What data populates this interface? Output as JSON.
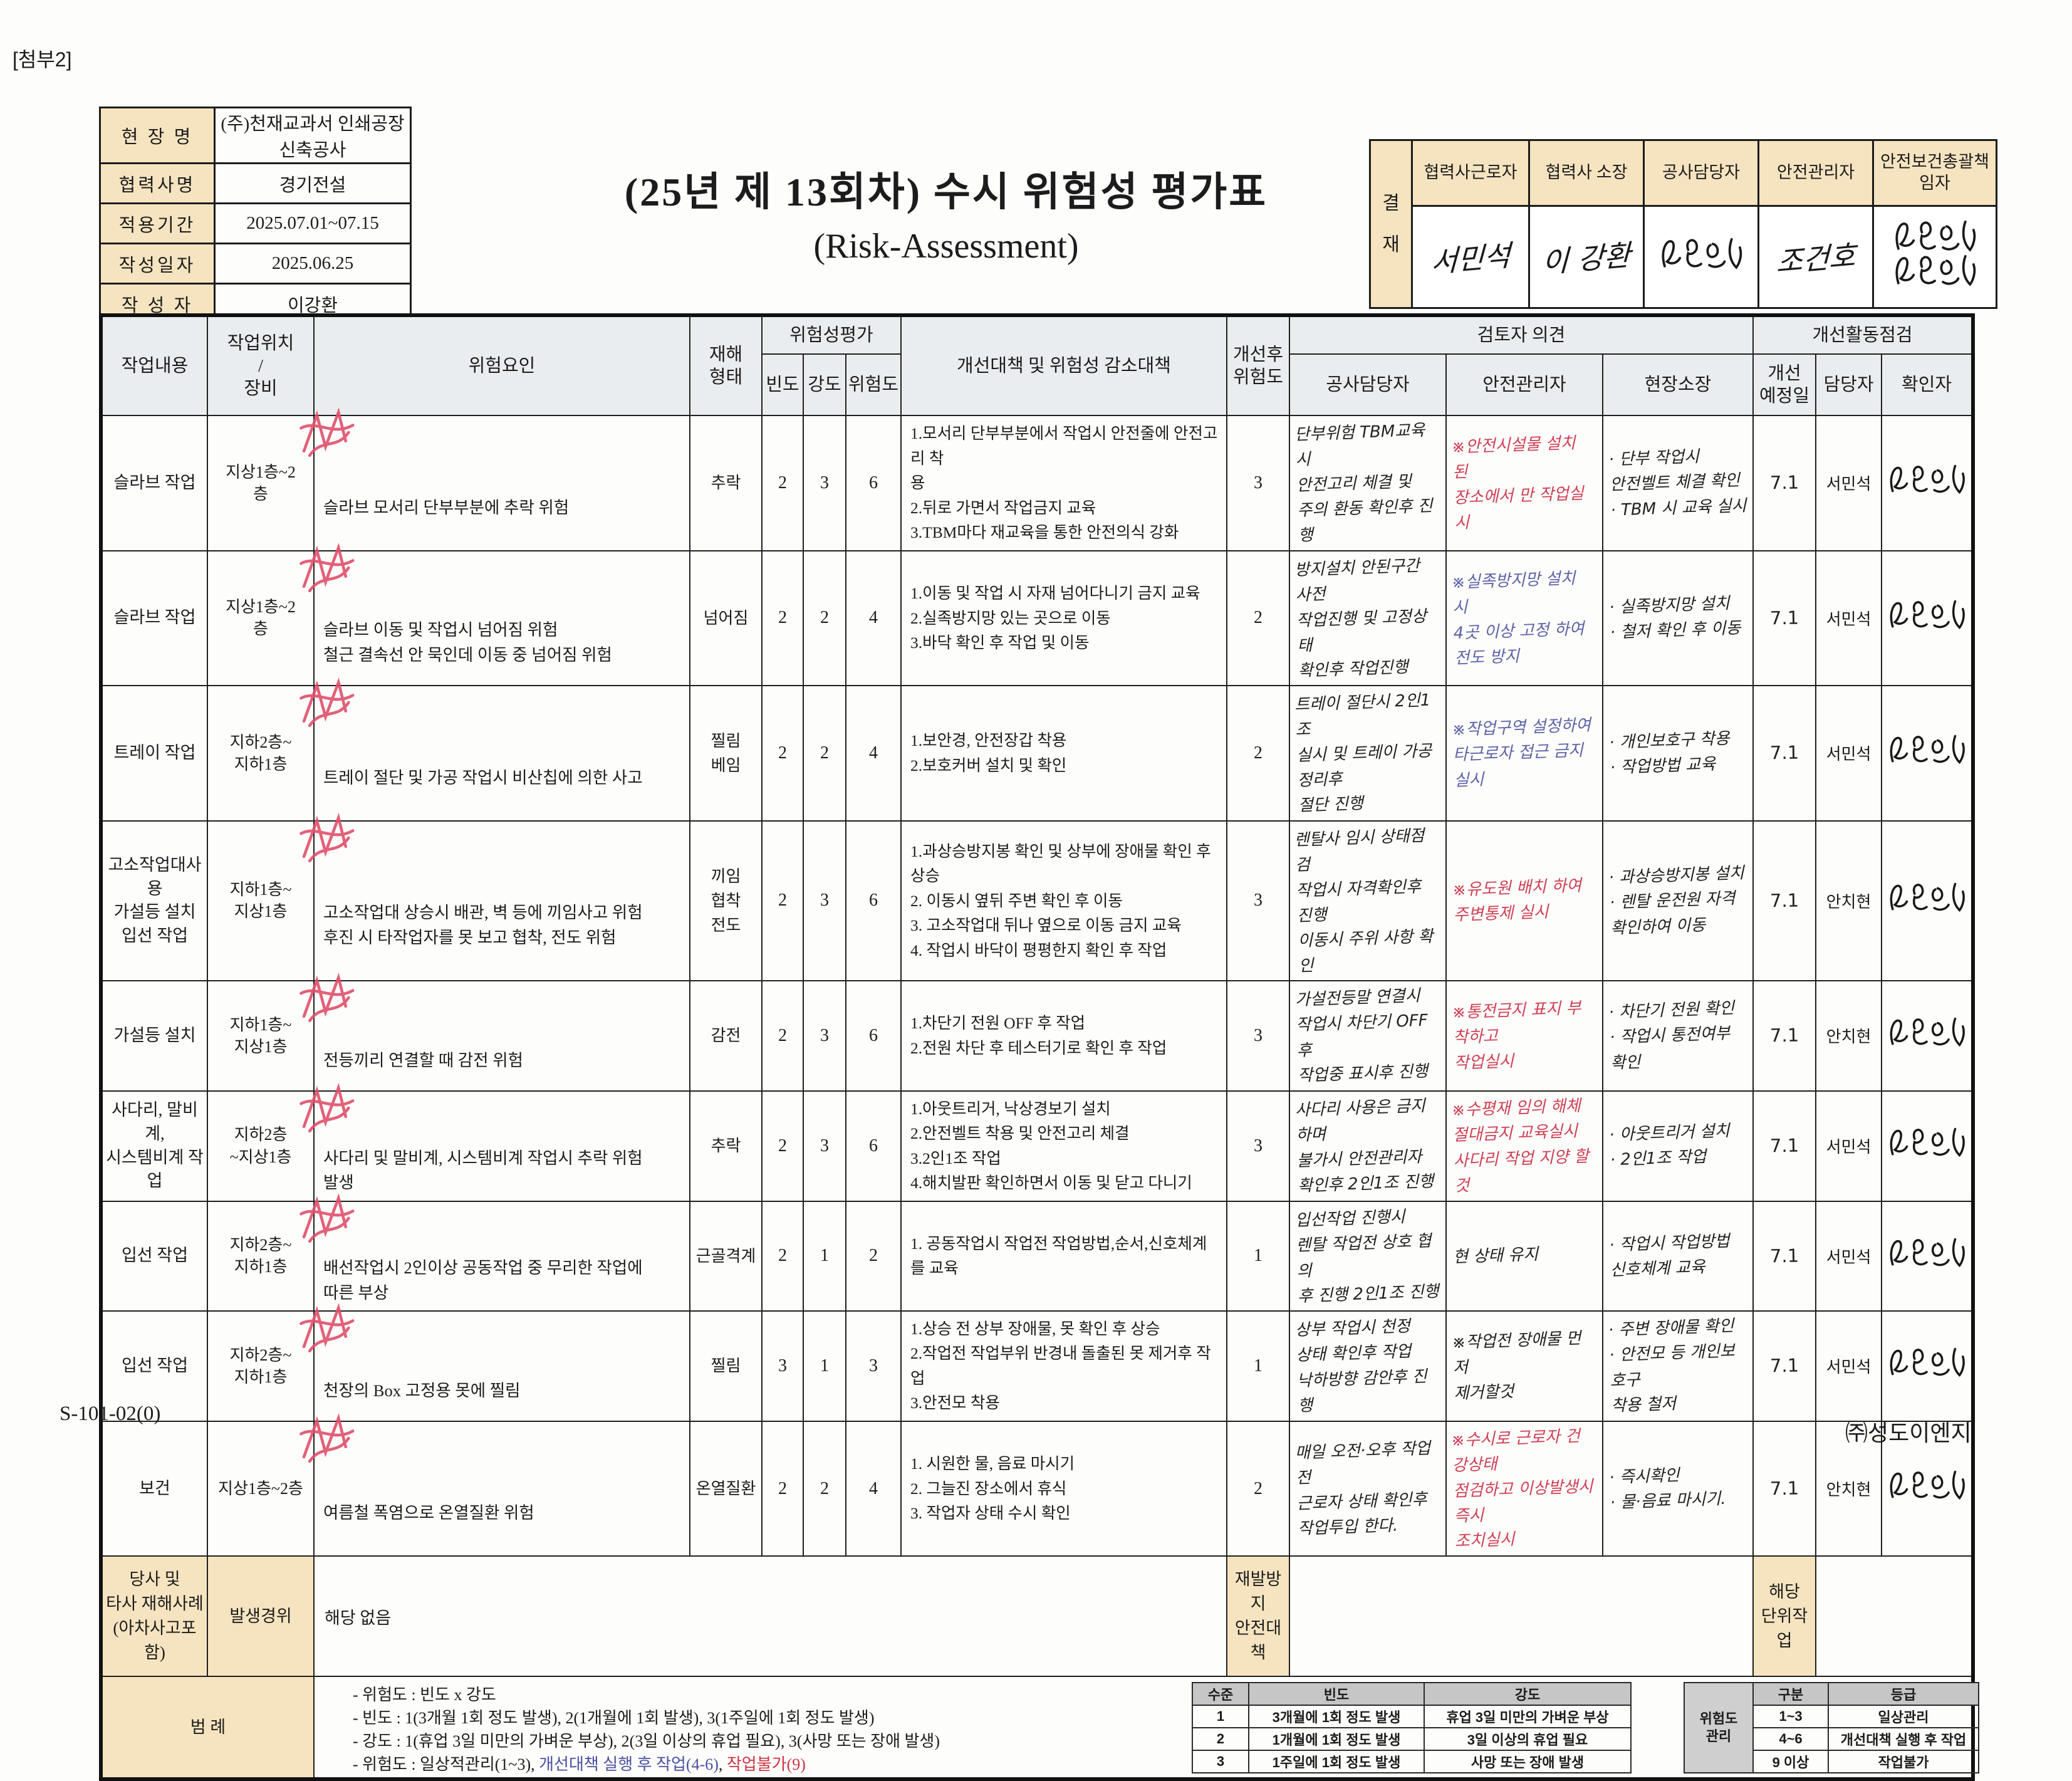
{
  "page": {
    "attachment": "[첨부2]",
    "form_code": "S-101-02(0)",
    "company": "㈜성도이엔지"
  },
  "info": {
    "rows": [
      {
        "label": "현 장 명",
        "value": "(주)천재교과서 인쇄공장\n신축공사"
      },
      {
        "label": "협력사명",
        "value": "경기전설"
      },
      {
        "label": "적용기간",
        "value": "2025.07.01~07.15"
      },
      {
        "label": "작성일자",
        "value": "2025.06.25"
      },
      {
        "label": "작 성 자",
        "value": "이강환"
      }
    ]
  },
  "title": {
    "line1": "(25년 제 13회차) 수시 위험성 평가표",
    "line2": "(Risk-Assessment)"
  },
  "approval": {
    "label": "결\n재",
    "cols": [
      {
        "header": "협력사근로자",
        "sign": "서민석",
        "sign_type": "text"
      },
      {
        "header": "협력사 소장",
        "sign": "이 강환",
        "sign_type": "text"
      },
      {
        "header": "공사담당자",
        "sign": "강용선",
        "sign_type": "scribble"
      },
      {
        "header": "안전관리자",
        "sign": "조건호",
        "sign_type": "text"
      },
      {
        "header": "안전보건총괄책\n임자",
        "sign": "최용선",
        "sign_type": "scribble"
      }
    ]
  },
  "table": {
    "group_headers": {
      "risk_eval": "위험성평가",
      "reviewer": "검토자 의견",
      "improve_check": "개선활동점검"
    },
    "headers": {
      "task": "작업내용",
      "location": "작업위치\n/\n장비",
      "hazard": "위험요인",
      "type": "재해\n형태",
      "freq": "빈도",
      "sev": "강도",
      "risk": "위험도",
      "measures": "개선대책 및 위험성 감소대책",
      "after": "개선후\n위험도",
      "op_manager": "공사담당자",
      "op_safety": "안전관리자",
      "op_site": "현장소장",
      "plan_date": "개선\n예정일",
      "person": "담당자",
      "confirmer": "확인자"
    },
    "rows": [
      {
        "task": "슬라브 작업",
        "location": "지상1층~2\n층",
        "hazard": "슬라브 모서리 단부부분에 추락 위험",
        "type": "추락",
        "freq": "2",
        "sev": "3",
        "risk": "6",
        "measures": "1.모서리 단부부분에서 작업시 안전줄에 안전고리 착\n용\n2.뒤로 가면서 작업금지 교육\n3.TBM마다 재교육을 통한 안전의식 강화",
        "after": "3",
        "op_manager": "단부위험 TBM교육시\n안전고리 체결 및\n주의 환동 확인후 진행",
        "op_safety": "※안전시설물 설치 된\n장소에서 만 작업실시",
        "op_safety_color": "red",
        "op_site": "· 단부 작업시\n  안전벨트 체결 확인\n· TBM 시 교육 실시",
        "plan_date": "7.1",
        "person": "서민석"
      },
      {
        "task": "슬라브 작업",
        "location": "지상1층~2\n층",
        "hazard": "슬라브 이동 및 작업시 넘어짐 위험\n철근 결속선 안 묵인데 이동 중 넘어짐 위험",
        "type": "넘어짐",
        "freq": "2",
        "sev": "2",
        "risk": "4",
        "measures": "1.이동 및 작업 시 자재 넘어다니기 금지 교육\n2.실족방지망 있는 곳으로 이동\n3.바닥 확인 후 작업 및 이동",
        "after": "2",
        "op_manager": "방지설치 안된구간 사전\n작업진행 및 고정상태\n확인후 작업진행",
        "op_safety": "※실족방지망 설치 시\n4곳 이상 고정 하여\n전도 방지",
        "op_safety_color": "blue",
        "op_site": "· 실족방지망 설치\n· 철저 확인 후 이동",
        "plan_date": "7.1",
        "person": "서민석"
      },
      {
        "task": "트레이 작업",
        "location": "지하2층~\n지하1층",
        "hazard": "트레이 절단 및 가공 작업시 비산칩에 의한 사고",
        "type": "찔림\n베임",
        "freq": "2",
        "sev": "2",
        "risk": "4",
        "measures": "1.보안경, 안전장갑 착용\n2.보호커버 설치 및 확인",
        "after": "2",
        "op_manager": "트레이 절단시 2인1조\n실시 및 트레이 가공정리후\n절단 진행",
        "op_safety": "※작업구역 설정하여\n타근로자 접근 금지실시",
        "op_safety_color": "blue",
        "op_site": "· 개인보호구 착용\n· 작업방법 교육",
        "plan_date": "7.1",
        "person": "서민석"
      },
      {
        "task": "고소작업대사용\n가설등 설치\n입선 작업",
        "location": "지하1층~\n지상1층",
        "hazard": "고소작업대 상승시 배관, 벽 등에 끼임사고 위험\n후진 시 타작업자를 못 보고 협착, 전도 위험",
        "type": "끼임\n협착\n전도",
        "freq": "2",
        "sev": "3",
        "risk": "6",
        "measures": "1.과상승방지봉 확인 및 상부에 장애물 확인 후 상승\n2. 이동시 옆뒤 주변 확인 후 이동\n3. 고소작업대 뒤나 옆으로 이동 금지 교육\n4. 작업시 바닥이 평평한지 확인 후 작업",
        "after": "3",
        "op_manager": "렌탈사 임시 상태점검\n작업시 자격확인후 진행\n이동시 주위 사항 확인",
        "op_safety": "※유도원 배치 하여\n주변통제 실시",
        "op_safety_color": "red",
        "op_site": "· 과상승방지봉 설치\n· 렌탈 운전원 자격\n  확인하여 이동",
        "plan_date": "7.1",
        "person": "안치현"
      },
      {
        "task": "가설등 설치",
        "location": "지하1층~\n지상1층",
        "hazard": "전등끼리 연결할 때 감전 위험",
        "type": "감전",
        "freq": "2",
        "sev": "3",
        "risk": "6",
        "measures": "1.차단기 전원 OFF 후 작업\n2.전원 차단 후 테스터기로 확인 후 작업",
        "after": "3",
        "op_manager": "가설전등말 연결시\n작업시 차단기 OFF후\n작업중 표시후 진행",
        "op_safety": "※통전금지 표지 부착하고\n작업실시",
        "op_safety_color": "red",
        "op_site": "· 차단기 전원 확인\n· 작업시 통전여부 확인",
        "plan_date": "7.1",
        "person": "안치현"
      },
      {
        "task": "사다리, 말비계,\n시스템비계 작업",
        "location": "지하2층\n~지상1층",
        "hazard": "사다리 및 말비계, 시스템비계 작업시 추락 위험\n발생",
        "type": "추락",
        "freq": "2",
        "sev": "3",
        "risk": "6",
        "measures": "1.아웃트리거, 낙상경보기 설치\n2.안전벨트 착용 및 안전고리 체결\n3.2인1조 작업\n4.해치발판 확인하면서 이동 및 닫고 다니기",
        "after": "3",
        "op_manager": "사다리 사용은 금지하며\n불가시 안전관리자\n확인후 2인1조 진행",
        "op_safety": "※수평재 임의 해체\n절대금지 교육실시\n사다리 작업 지양 할것",
        "op_safety_color": "red",
        "op_site": "· 아웃트리거 설치\n· 2인1조 작업",
        "plan_date": "7.1",
        "person": "서민석"
      },
      {
        "task": "입선 작업",
        "location": "지하2층~\n지하1층",
        "hazard": "배선작업시 2인이상 공동작업 중 무리한 작업에\n따른 부상",
        "type": "근골격계",
        "freq": "2",
        "sev": "1",
        "risk": "2",
        "measures": "1. 공동작업시 작업전 작업방법,순서,신호체계를 교육",
        "after": "1",
        "op_manager": "입선작업 진행시\n렌탈 작업전 상호 협의\n후 진행 2인1조 진행",
        "op_safety": "현 상태 유지",
        "op_safety_color": "black",
        "op_site": "· 작업시 작업방법\n  신호체계 교육",
        "plan_date": "7.1",
        "person": "서민석"
      },
      {
        "task": "입선 작업",
        "location": "지하2층~\n지하1층",
        "hazard": "천장의 Box 고정용 못에 찔림",
        "type": "찔림",
        "freq": "3",
        "sev": "1",
        "risk": "3",
        "measures": "1.상승 전 상부 장애물, 못 확인 후 상승\n2.작업전 작업부위 반경내 돌출된 못 제거후 작업\n3.안전모 착용",
        "after": "1",
        "op_manager": "상부 작업시 천정\n상태 확인후 작업\n낙하방향 감안후 진행",
        "op_safety": "※작업전 장애물 먼저\n제거할것",
        "op_safety_color": "black",
        "op_site": "· 주변 장애물 확인\n· 안전모 등 개인보호구\n  착용 철저",
        "plan_date": "7.1",
        "person": "서민석"
      },
      {
        "task": "보건",
        "location": "지상1층~2층",
        "hazard": "여름철 폭염으로 온열질환 위험",
        "type": "온열질환",
        "freq": "2",
        "sev": "2",
        "risk": "4",
        "measures": "1. 시원한 물, 음료 마시기\n2. 그늘진 장소에서 휴식\n3. 작업자 상태 수시 확인",
        "after": "2",
        "op_manager": "매일 오전·오후 작업전\n근로자 상태 확인후\n작업투입 한다.",
        "op_safety": "※수시로 근로자 건강상태\n점검하고 이상발생시 즉시\n조치실시",
        "op_safety_color": "red",
        "op_site": "· 즉시확인\n· 물·음료 마시기.",
        "plan_date": "7.1",
        "person": "안치현"
      }
    ]
  },
  "accident_case": {
    "label": "당사 및\n타사 재해사례\n(아차사고포함)",
    "sub_label": "발생경위",
    "value": "해당 없음",
    "prevention_label": "재발방지\n안전대책",
    "unit_label": "해당\n단위작업"
  },
  "legend": {
    "label": "범   례",
    "lines": [
      "- 위험도 : 빈도 x 강도",
      "- 빈도 : 1(3개월 1회 정도 발생), 2(1개월에 1회 발생), 3(1주일에 1회 정도 발생)",
      "- 강도 : 1(휴업 3일 미만의 가벼운 부상), 2(3일 이상의 휴업 필요), 3(사망 또는 장애 발생)"
    ],
    "line4": [
      {
        "text": "- 위험도 : 일상적관리(1~3), ",
        "color": "black"
      },
      {
        "text": "개선대책 실행 후 작업(4-6)",
        "color": "blue"
      },
      {
        "text": ", ",
        "color": "black"
      },
      {
        "text": "작업불가(9)",
        "color": "red"
      }
    ]
  },
  "freq_sev_table": {
    "headers": [
      "수준",
      "빈도",
      "강도"
    ],
    "rows": [
      [
        "1",
        "3개월에 1회 정도 발생",
        "휴업 3일 미만의 가벼운 부상"
      ],
      [
        "2",
        "1개월에 1회 정도 발생",
        "3일 이상의 휴업 필요"
      ],
      [
        "3",
        "1주일에 1회 정도 발생",
        "사망 또는 장애 발생"
      ]
    ]
  },
  "risk_mgmt_table": {
    "label": "위험도\n관리",
    "headers": [
      "구분",
      "등급"
    ],
    "rows": [
      [
        "1~3",
        "일상관리"
      ],
      [
        "4~6",
        "개선대책 실행 후 작업"
      ],
      [
        "9 이상",
        "작업불가"
      ]
    ]
  }
}
